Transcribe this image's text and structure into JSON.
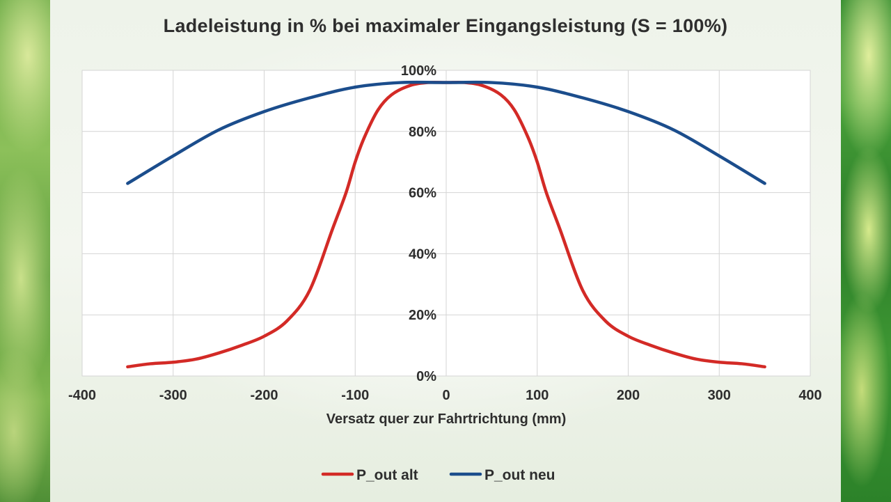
{
  "chart_data": {
    "type": "line",
    "title": "Ladeleistung in % bei maximaler Eingangsleistung (S = 100%)",
    "xlabel": "Versatz quer zur Fahrtrichtung (mm)",
    "ylabel": "",
    "xlim": [
      -400,
      400
    ],
    "ylim": [
      0,
      100
    ],
    "x_ticks": [
      -400,
      -300,
      -200,
      -100,
      0,
      100,
      200,
      300,
      400
    ],
    "x_tick_labels": [
      "-400",
      "-300",
      "-200",
      "-100",
      "0",
      "100",
      "200",
      "300",
      "400"
    ],
    "y_ticks": [
      0,
      20,
      40,
      60,
      80,
      100
    ],
    "y_tick_labels": [
      "0%",
      "20%",
      "40%",
      "60%",
      "80%",
      "100%"
    ],
    "grid": true,
    "legend_position": "bottom",
    "series": [
      {
        "name": "P_out alt",
        "color": "#d32a26",
        "x": [
          -350,
          -325,
          -300,
          -275,
          -250,
          -225,
          -200,
          -175,
          -150,
          -125,
          -110,
          -100,
          -90,
          -75,
          -60,
          -40,
          -20,
          0,
          20,
          40,
          60,
          75,
          90,
          100,
          110,
          125,
          150,
          175,
          200,
          225,
          250,
          275,
          300,
          325,
          350
        ],
        "y": [
          3,
          4,
          4.5,
          5.5,
          7.5,
          10,
          13,
          18,
          28,
          48,
          60,
          70,
          78,
          87,
          92,
          95,
          96,
          96,
          96,
          95,
          92,
          87,
          78,
          70,
          60,
          48,
          28,
          18,
          13,
          10,
          7.5,
          5.5,
          4.5,
          4,
          3
        ]
      },
      {
        "name": "P_out neu",
        "color": "#1b4d8c",
        "x": [
          -350,
          -300,
          -250,
          -200,
          -150,
          -100,
          -50,
          0,
          50,
          100,
          150,
          200,
          250,
          300,
          350
        ],
        "y": [
          63,
          72,
          80.5,
          86.5,
          91,
          94.5,
          96,
          96,
          96,
          94.5,
          91,
          86.5,
          80.5,
          72,
          63
        ]
      }
    ]
  }
}
